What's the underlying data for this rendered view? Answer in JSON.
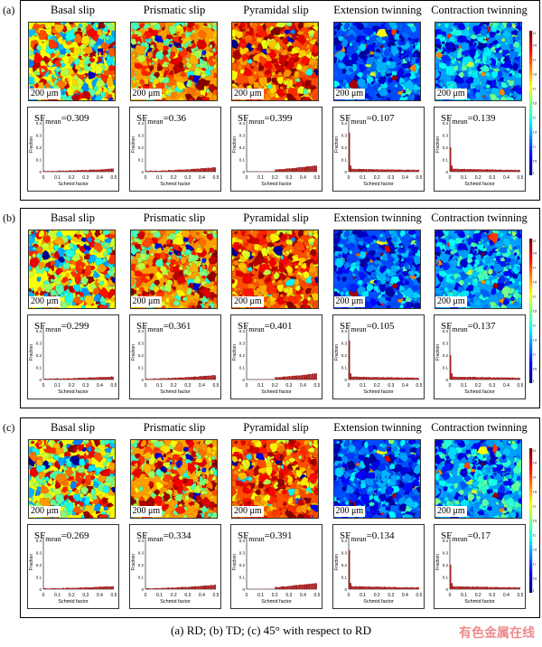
{
  "panels": [
    {
      "label": "(a)",
      "sf_mean": [
        "0.309",
        "0.36",
        "0.399",
        "0.107",
        "0.139"
      ]
    },
    {
      "label": "(b)",
      "sf_mean": [
        "0.299",
        "0.361",
        "0.401",
        "0.105",
        "0.137"
      ]
    },
    {
      "label": "(c)",
      "sf_mean": [
        "0.269",
        "0.334",
        "0.391",
        "0.134",
        "0.17"
      ]
    }
  ],
  "columns": [
    "Basal slip",
    "Prismatic slip",
    "Pyramidal slip",
    "Extension twinning",
    "Contraction twinning"
  ],
  "scale_bar": "200 μm",
  "sf_label_main": "SF",
  "sf_label_sub": "mean",
  "hist_axes": {
    "ylabel": "Fraction",
    "xlabel": "Schmid factor",
    "yticks": [
      "0",
      "0.1",
      "0.2",
      "0.3",
      "0.4"
    ],
    "xticks": [
      "0",
      "0.1",
      "0.2",
      "0.3",
      "0.4",
      "0.5"
    ]
  },
  "colorbar_ticks": [
    "0",
    "0.05",
    "0.1",
    "0.15",
    "0.2",
    "0.25",
    "0.3",
    "0.35",
    "0.4",
    "0.45",
    "0.5"
  ],
  "colors": {
    "hist_bar": "#a41c1c"
  },
  "caption": "(a) RD; (b) TD; (c) 45° with respect to RD",
  "watermark": "有色金属在线"
}
